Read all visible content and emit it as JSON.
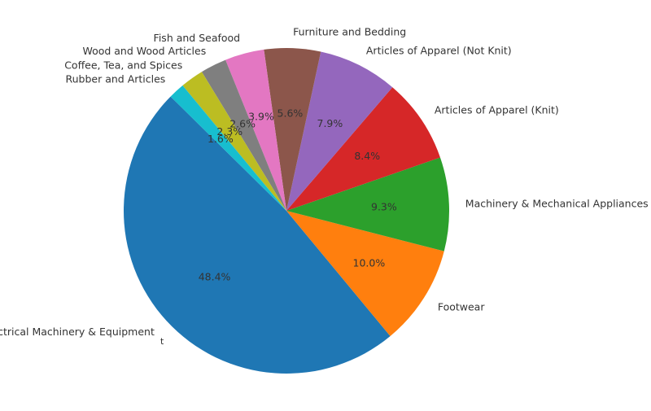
{
  "chart_data": {
    "type": "pie",
    "title": "",
    "start_angle_deg": 135.4,
    "direction": "counterclockwise",
    "slices": [
      {
        "label": "Electrical Machinery & Equipment",
        "value": 48.4,
        "pct_label": "48.4%",
        "color": "#1f77b4"
      },
      {
        "label": "Footwear",
        "value": 10.0,
        "pct_label": "10.0%",
        "color": "#ff7f0e"
      },
      {
        "label": "Machinery & Mechanical Appliances",
        "value": 9.3,
        "pct_label": "9.3%",
        "color": "#2ca02c"
      },
      {
        "label": "Articles of Apparel (Knit)",
        "value": 8.4,
        "pct_label": "8.4%",
        "color": "#d62728"
      },
      {
        "label": "Articles of Apparel (Not Knit)",
        "value": 7.9,
        "pct_label": "7.9%",
        "color": "#9467bd"
      },
      {
        "label": "Furniture and Bedding",
        "value": 5.6,
        "pct_label": "5.6%",
        "color": "#8c564b"
      },
      {
        "label": "Fish and Seafood",
        "value": 3.9,
        "pct_label": "3.9%",
        "color": "#e377c2"
      },
      {
        "label": "Wood and Wood Articles",
        "value": 2.6,
        "pct_label": "2.6%",
        "color": "#7f7f7f"
      },
      {
        "label": "Coffee, Tea, and Spices",
        "value": 2.3,
        "pct_label": "2.3%",
        "color": "#bcbd22"
      },
      {
        "label": "Rubber and Articles",
        "value": 1.6,
        "pct_label": "1.6%",
        "color": "#17becf"
      }
    ],
    "stray_mark": "t"
  }
}
